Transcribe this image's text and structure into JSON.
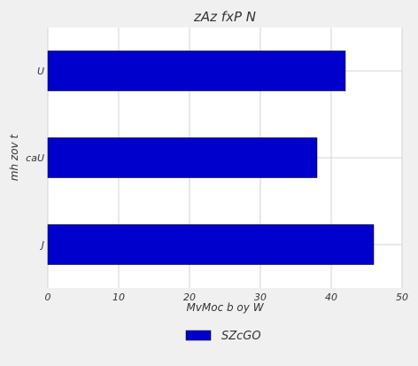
{
  "chart_data": {
    "type": "bar",
    "orientation": "horizontal",
    "title": "zAz fxP N",
    "xlabel": "MvMoc b oy  W",
    "ylabel": "mh zov t",
    "categories": [
      "J",
      "caU",
      "U"
    ],
    "series": [
      {
        "name": "SZcGO",
        "values": [
          46,
          38,
          42
        ],
        "color": "#0000cc"
      }
    ],
    "xlim": [
      0,
      50
    ],
    "xticks": [
      0,
      10,
      20,
      30,
      40,
      50
    ],
    "grid": true,
    "legend_position": "bottom-center"
  },
  "colors": {
    "background": "#f0f0f0",
    "plot_background": "#ffffff",
    "grid": "#d3d3d3",
    "bar": "#0000cc"
  }
}
